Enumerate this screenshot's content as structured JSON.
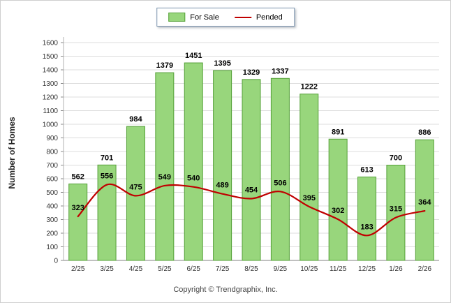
{
  "legend": {
    "for_sale_label": "For Sale",
    "pended_label": "Pended"
  },
  "footer": {
    "copyright": "Copyright © Trendgraphix, Inc."
  },
  "chart_data": {
    "type": "bar",
    "categories": [
      "2/25",
      "3/25",
      "4/25",
      "5/25",
      "6/25",
      "7/25",
      "8/25",
      "9/25",
      "10/25",
      "11/25",
      "12/25",
      "1/26",
      "2/26"
    ],
    "series": [
      {
        "name": "For Sale",
        "type": "bar",
        "color": "#98d67c",
        "edge_color": "#55a038",
        "values": [
          562,
          701,
          984,
          1379,
          1451,
          1395,
          1329,
          1337,
          1222,
          891,
          613,
          700,
          886
        ]
      },
      {
        "name": "Pended",
        "type": "line",
        "color": "#c00000",
        "values": [
          323,
          556,
          475,
          549,
          540,
          489,
          454,
          506,
          395,
          302,
          183,
          315,
          364
        ]
      }
    ],
    "title": "",
    "xlabel": "",
    "ylabel": "Number of Homes",
    "ylim": [
      0,
      1600
    ],
    "ytick_step": 100,
    "grid": true,
    "legend_position": "top-center"
  }
}
